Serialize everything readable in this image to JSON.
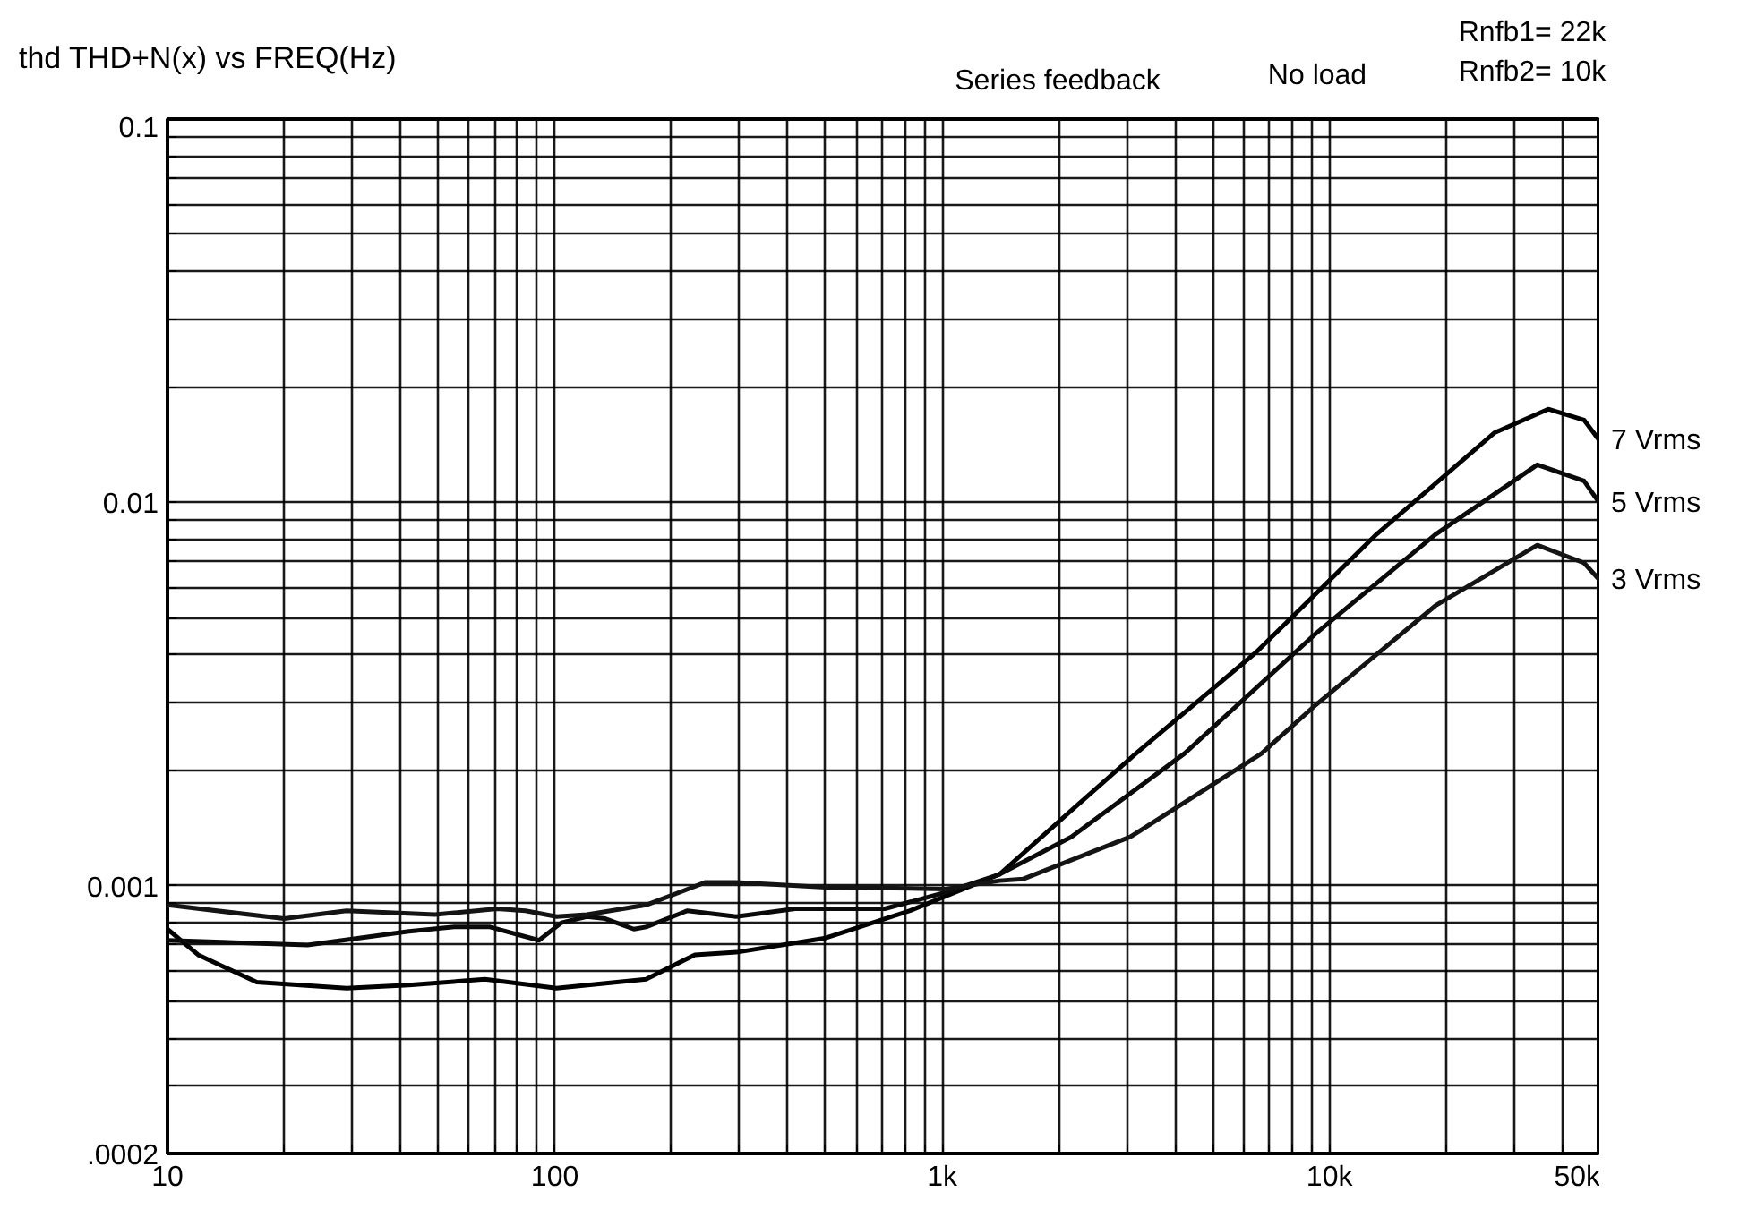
{
  "chart_data": {
    "type": "line",
    "title": "thd THD+N(x) vs FREQ(Hz)",
    "annotations": [
      "Series feedback",
      "No load",
      "Rnfb1= 22k",
      "Rnfb2= 10k"
    ],
    "log": "xy",
    "grid": true,
    "marker": "none",
    "line_style": "solid",
    "xlim": [
      10,
      50000
    ],
    "ylim": [
      0.0002,
      0.1
    ],
    "xticks": [
      10,
      {
        "value": 20,
        "label": null
      },
      {
        "value": 30,
        "label": null
      },
      {
        "value": 40,
        "label": null
      },
      {
        "value": 50,
        "label": null
      },
      {
        "value": 60,
        "label": null
      },
      {
        "value": 70,
        "label": null
      },
      {
        "value": 80,
        "label": null
      },
      {
        "value": 90,
        "label": null
      },
      100,
      {
        "value": 200,
        "label": null
      },
      {
        "value": 300,
        "label": null
      },
      {
        "value": 400,
        "label": null
      },
      {
        "value": 500,
        "label": null
      },
      {
        "value": 600,
        "label": null
      },
      {
        "value": 700,
        "label": null
      },
      {
        "value": 800,
        "label": null
      },
      {
        "value": 900,
        "label": null
      },
      {
        "value": 1000,
        "label": "1k"
      },
      {
        "value": 2000,
        "label": null
      },
      {
        "value": 3000,
        "label": null
      },
      {
        "value": 4000,
        "label": null
      },
      {
        "value": 5000,
        "label": null
      },
      {
        "value": 6000,
        "label": null
      },
      {
        "value": 7000,
        "label": null
      },
      {
        "value": 8000,
        "label": null
      },
      {
        "value": 9000,
        "label": null
      },
      {
        "value": 10000,
        "label": "10k"
      },
      {
        "value": 20000,
        "label": null
      },
      {
        "value": 30000,
        "label": null
      },
      {
        "value": 40000,
        "label": null
      },
      {
        "value": 50000,
        "label": "50k"
      }
    ],
    "yticks": [
      {
        "value": 0.0002,
        "label": ".0002"
      },
      {
        "value": 0.0003,
        "label": null
      },
      {
        "value": 0.0004,
        "label": null
      },
      {
        "value": 0.0005,
        "label": null
      },
      {
        "value": 0.0006,
        "label": null
      },
      {
        "value": 0.0007,
        "label": null
      },
      {
        "value": 0.0008,
        "label": null
      },
      {
        "value": 0.0009,
        "label": null
      },
      0.001,
      {
        "value": 0.002,
        "label": null
      },
      {
        "value": 0.003,
        "label": null
      },
      {
        "value": 0.004,
        "label": null
      },
      {
        "value": 0.005,
        "label": null
      },
      {
        "value": 0.006,
        "label": null
      },
      {
        "value": 0.007,
        "label": null
      },
      {
        "value": 0.008,
        "label": null
      },
      {
        "value": 0.009,
        "label": null
      },
      0.01,
      {
        "value": 0.02,
        "label": null
      },
      {
        "value": 0.03,
        "label": null
      },
      {
        "value": 0.04,
        "label": null
      },
      {
        "value": 0.05,
        "label": null
      },
      {
        "value": 0.06,
        "label": null
      },
      {
        "value": 0.07,
        "label": null
      },
      {
        "value": 0.08,
        "label": null
      },
      {
        "value": 0.09,
        "label": null
      },
      0.1
    ],
    "series": [
      {
        "name": "7 Vrms",
        "color": "#000000",
        "x": [
          10,
          12,
          17,
          29,
          42,
          66,
          101,
          172,
          230,
          294,
          500,
          826,
          1406,
          2155,
          3162,
          6460,
          13200,
          26700,
          36700,
          45400,
          50000
        ],
        "values": [
          0.00077,
          0.00066,
          0.00056,
          0.00054,
          0.00055,
          0.00057,
          0.00054,
          0.00057,
          0.00066,
          0.00067,
          0.00073,
          0.00086,
          0.00107,
          0.00157,
          0.00221,
          0.00406,
          0.00824,
          0.0152,
          0.0175,
          0.0164,
          0.0144
        ]
      },
      {
        "name": "5 Vrms",
        "color": "#0a0a0a",
        "x": [
          10,
          23,
          42,
          55,
          68,
          91,
          104,
          121,
          135,
          160,
          172,
          220,
          294,
          417,
          711,
          1020,
          1406,
          2155,
          4220,
          9180,
          18750,
          34400,
          45400,
          50000
        ],
        "values": [
          0.00072,
          0.0007,
          0.00076,
          0.00078,
          0.00078,
          0.00072,
          0.0008,
          0.00083,
          0.00082,
          0.00077,
          0.00078,
          0.00086,
          0.00083,
          0.00087,
          0.00087,
          0.00096,
          0.00107,
          0.00134,
          0.00221,
          0.00453,
          0.00824,
          0.01253,
          0.01137,
          0.00989
        ]
      },
      {
        "name": "3 Vrms",
        "color": "#141414",
        "x": [
          10,
          20,
          29,
          49,
          71,
          84,
          101,
          121,
          172,
          245,
          294,
          500,
          1020,
          1406,
          1616,
          3060,
          6670,
          9180,
          18750,
          34400,
          45400,
          50000
        ],
        "values": [
          0.00089,
          0.00082,
          0.00086,
          0.00084,
          0.00087,
          0.00086,
          0.00083,
          0.00084,
          0.00089,
          0.00102,
          0.00102,
          0.00099,
          0.00098,
          0.00103,
          0.00104,
          0.00134,
          0.00221,
          0.00295,
          0.00537,
          0.00773,
          0.00695,
          0.00624
        ]
      }
    ]
  }
}
